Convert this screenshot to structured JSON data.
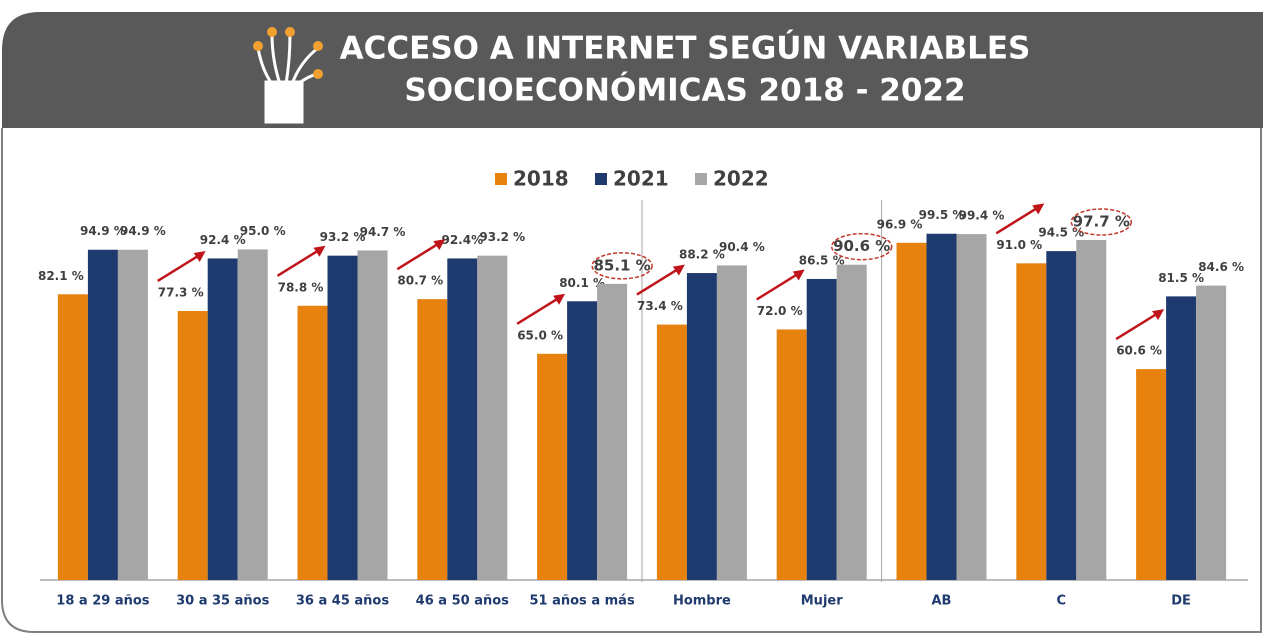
{
  "chart_data": {
    "type": "bar",
    "title": [
      "ACCESO A INTERNET SEGÚN VARIABLES",
      "SOCIOECONÓMICAS 2018 - 2022"
    ],
    "categories": [
      "18 a 29 años",
      "30 a 35 años",
      "36 a 45 años",
      "46 a 50 años",
      "51 años a más",
      "Hombre",
      "Mujer",
      "AB",
      "C",
      "DE"
    ],
    "series": [
      {
        "name": "2018",
        "color": "#e8820e",
        "values": [
          82.1,
          77.3,
          78.8,
          80.7,
          65.0,
          73.4,
          72.0,
          96.9,
          91.0,
          60.6
        ],
        "value_labels": [
          "82.1 %",
          "77.3 %",
          "78.8 %",
          "80.7 %",
          "65.0 %",
          "73.4 %",
          "72.0 %",
          "96.9 %",
          "91.0 %",
          "60.6 %"
        ]
      },
      {
        "name": "2021",
        "color": "#1f3a6e",
        "values": [
          94.9,
          92.4,
          93.2,
          92.4,
          80.1,
          88.2,
          86.5,
          99.5,
          94.5,
          81.5
        ],
        "value_labels": [
          "94.9 %",
          "92.4 %",
          "93.2 %",
          "92.4%",
          "80.1 %",
          "88.2 %",
          "86.5 %",
          "99.5 %",
          "94.5 %",
          "81.5 %"
        ]
      },
      {
        "name": "2022",
        "color": "#a6a6a6",
        "values": [
          94.9,
          95.0,
          94.7,
          93.2,
          85.1,
          90.4,
          90.6,
          99.4,
          97.7,
          84.6
        ],
        "value_labels": [
          "94.9 %",
          "95.0 %",
          "94.7 %",
          "93.2 %",
          "85.1 %",
          "90.4 %",
          "90.6 %",
          "99.4 %",
          "97.7 %",
          "84.6 %"
        ]
      }
    ],
    "ylim": [
      0,
      100
    ],
    "legend": "top"
  }
}
